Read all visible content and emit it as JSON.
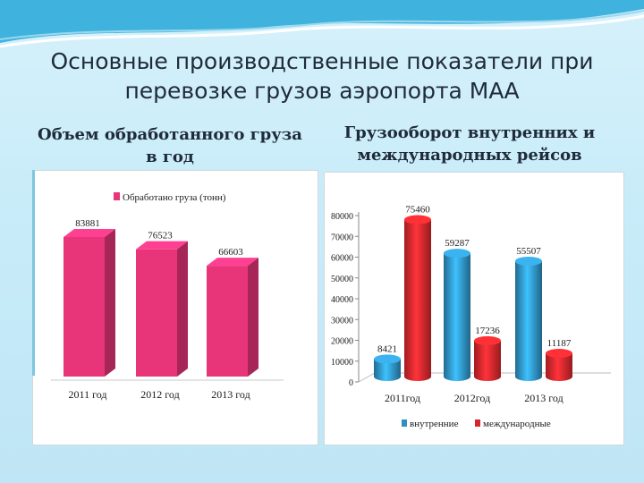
{
  "title": "Основные производственные показатели при перевозке грузов аэропорта МАА",
  "left_subtitle": "Объем обработанного груза в год",
  "right_subtitle": "Грузооборот внутренних и международных рейсов",
  "colors": {
    "pink": "#e8357a",
    "blue": "#2e8fc0",
    "red": "#d7262b"
  },
  "chart_data": [
    {
      "type": "bar",
      "title": "Объем обработанного груза в год",
      "categories": [
        "2011 год",
        "2012 год",
        "2013 год"
      ],
      "series": [
        {
          "name": "Обработано груза (тонн)",
          "values": [
            83881,
            76523,
            66603
          ]
        }
      ],
      "value_labels": [
        "83881",
        "76523",
        "66603"
      ],
      "ylim": [
        0,
        100000
      ]
    },
    {
      "type": "bar",
      "title": "Грузооборот внутренних и международных рейсов",
      "categories": [
        "2011год",
        "2012год",
        "2013 год"
      ],
      "series": [
        {
          "name": "внутренние",
          "values": [
            8421,
            59287,
            55507
          ],
          "labels": [
            "8421",
            "59287",
            "55507"
          ]
        },
        {
          "name": "международные",
          "values": [
            75460,
            17236,
            11187
          ],
          "labels": [
            "75460",
            "17236",
            "11187"
          ]
        }
      ],
      "ylim": [
        0,
        80000
      ],
      "yticks": [
        "0",
        "10000",
        "20000",
        "30000",
        "40000",
        "50000",
        "60000",
        "70000",
        "80000"
      ],
      "ytick_values": [
        0,
        10000,
        20000,
        30000,
        40000,
        50000,
        60000,
        70000,
        80000
      ]
    }
  ]
}
